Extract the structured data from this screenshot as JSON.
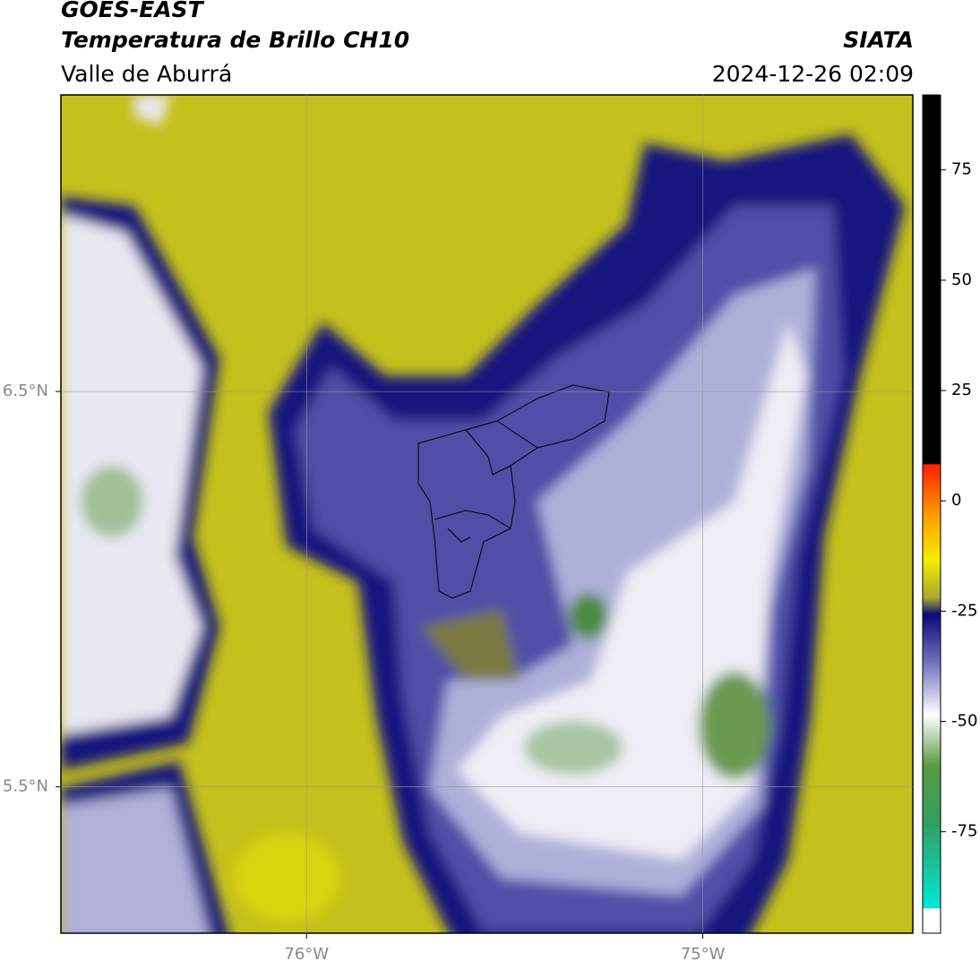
{
  "header": {
    "title": "GOES-EAST",
    "subtitle": "Temperatura de Brillo CH10",
    "region": "Valle de Aburrá",
    "source": "SIATA",
    "datetime": "2024-12-26 02:09"
  },
  "map": {
    "xlim": [
      -76.62,
      -74.47
    ],
    "ylim": [
      5.13,
      7.25
    ],
    "xticks": [
      {
        "value": -76,
        "label": "76°W"
      },
      {
        "value": -75,
        "label": "75°W"
      }
    ],
    "yticks": [
      {
        "value": 5.5,
        "label": "5.5°N"
      },
      {
        "value": 6.5,
        "label": "6.5°N"
      }
    ],
    "grid": true
  },
  "colorbar": {
    "lim": [
      -98,
      92
    ],
    "ticks": [
      75,
      50,
      25,
      0,
      -25,
      -50,
      -75
    ]
  }
}
